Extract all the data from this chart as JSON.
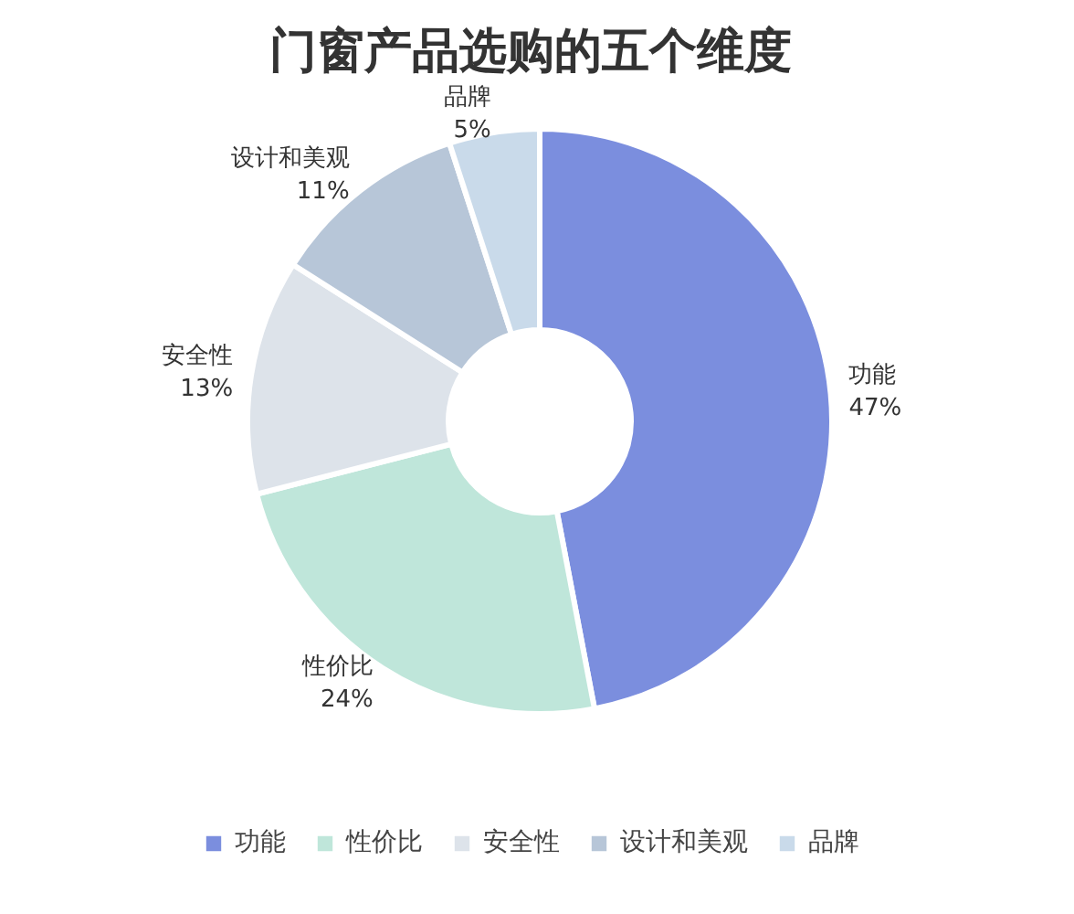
{
  "chart_data": {
    "type": "donut",
    "title": "门窗产品选购的五个维度",
    "categories": [
      "功能",
      "性价比",
      "安全性",
      "设计和美观",
      "品牌"
    ],
    "values": [
      47,
      24,
      13,
      11,
      5
    ],
    "colors": [
      "#7b8ede",
      "#bfe6da",
      "#dde3ea",
      "#b7c6d8",
      "#c9daea"
    ],
    "value_labels": [
      "47%",
      "24%",
      "13%",
      "11%",
      "5%"
    ],
    "legend": "bottom"
  }
}
